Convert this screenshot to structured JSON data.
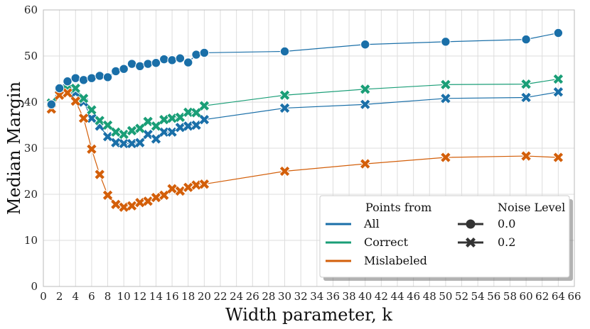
{
  "chart_data": {
    "type": "line",
    "title": "",
    "xlabel": "Width parameter, k",
    "ylabel": "Median Margin",
    "xlim": [
      0,
      66
    ],
    "ylim": [
      0,
      60
    ],
    "xticks": [
      0,
      2,
      4,
      6,
      8,
      10,
      12,
      14,
      16,
      18,
      20,
      22,
      24,
      26,
      28,
      30,
      32,
      34,
      36,
      38,
      40,
      42,
      44,
      46,
      48,
      50,
      52,
      54,
      56,
      58,
      60,
      62,
      64,
      66
    ],
    "yticks": [
      0,
      10,
      20,
      30,
      40,
      50,
      60
    ],
    "grid": true,
    "legend": {
      "placement": "bottom-right",
      "hue_title": "Points from",
      "style_title": "Noise Level",
      "hue_entries": [
        {
          "name": "All",
          "color": "#1a6fa8"
        },
        {
          "name": "Correct",
          "color": "#1a9e77"
        },
        {
          "name": "Mislabeled",
          "color": "#d35f0a"
        }
      ],
      "style_entries": [
        {
          "name": "0.0",
          "marker": "circle"
        },
        {
          "name": "0.2",
          "marker": "x"
        }
      ]
    },
    "series": [
      {
        "group": "All",
        "noise": "0.0",
        "marker": "circle",
        "color": "#1a6fa8",
        "x": [
          1,
          2,
          3,
          4,
          5,
          6,
          7,
          8,
          9,
          10,
          11,
          12,
          13,
          14,
          15,
          16,
          17,
          18,
          19,
          20,
          30,
          40,
          50,
          60,
          64
        ],
        "y": [
          39.5,
          43.0,
          44.5,
          45.2,
          44.8,
          45.2,
          45.7,
          45.4,
          46.7,
          47.2,
          48.3,
          47.8,
          48.3,
          48.5,
          49.3,
          49.1,
          49.5,
          48.6,
          50.3,
          50.7,
          51.0,
          52.5,
          53.1,
          53.6,
          55.0
        ]
      },
      {
        "group": "All",
        "noise": "0.2",
        "marker": "x",
        "color": "#1a6fa8",
        "x": [
          1,
          2,
          3,
          4,
          5,
          6,
          7,
          8,
          9,
          10,
          11,
          12,
          13,
          14,
          15,
          16,
          17,
          18,
          19,
          20,
          30,
          40,
          50,
          60,
          64
        ],
        "y": [
          38.5,
          42.8,
          42.5,
          42.0,
          40.0,
          36.5,
          34.8,
          32.5,
          31.2,
          31.0,
          31.0,
          31.2,
          33.0,
          32.0,
          33.5,
          33.5,
          34.5,
          34.8,
          35.0,
          36.2,
          38.7,
          39.5,
          40.8,
          41.0,
          42.2
        ]
      },
      {
        "group": "Correct",
        "noise": "0.2",
        "marker": "x",
        "color": "#1a9e77",
        "x": [
          1,
          2,
          3,
          4,
          5,
          6,
          7,
          8,
          9,
          10,
          11,
          12,
          13,
          14,
          15,
          16,
          17,
          18,
          19,
          20,
          30,
          40,
          50,
          60,
          64
        ],
        "y": [
          39.8,
          42.5,
          42.8,
          43.0,
          40.8,
          38.3,
          36.0,
          35.0,
          33.5,
          33.0,
          33.8,
          34.3,
          35.8,
          34.8,
          36.2,
          36.5,
          36.7,
          37.8,
          37.7,
          39.2,
          41.5,
          42.8,
          43.8,
          43.9,
          45.0
        ]
      },
      {
        "group": "Mislabeled",
        "noise": "0.2",
        "marker": "x",
        "color": "#d35f0a",
        "x": [
          1,
          2,
          3,
          4,
          5,
          6,
          7,
          8,
          9,
          10,
          11,
          12,
          13,
          14,
          15,
          16,
          17,
          18,
          19,
          20,
          30,
          40,
          50,
          60,
          64
        ],
        "y": [
          38.5,
          41.5,
          42.0,
          40.2,
          36.5,
          29.8,
          24.3,
          19.8,
          17.8,
          17.2,
          17.5,
          18.2,
          18.5,
          19.3,
          19.8,
          21.2,
          20.7,
          21.5,
          22.0,
          22.2,
          25.0,
          26.6,
          28.0,
          28.3,
          28.0
        ]
      }
    ]
  }
}
